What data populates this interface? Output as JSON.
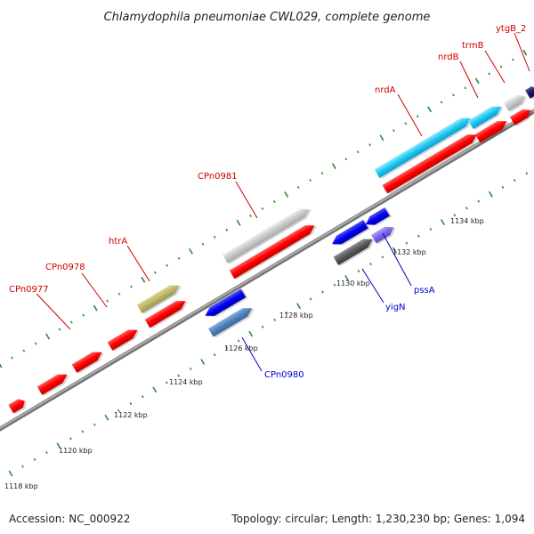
{
  "title": "Chlamydophila pneumoniae CWL029, complete genome",
  "footer": {
    "accession": "Accession: NC_000922",
    "summary": "Topology: circular; Length: 1,230,230 bp; Genes: 1,094"
  },
  "colors": {
    "forward_label": "#cc0000",
    "reverse_label": "#0000cc",
    "tick": "#2e8b2e",
    "backbone": "#8a8a8a"
  },
  "tick_labels": [
    "1118 kbp",
    "1120 kbp",
    "1122 kbp",
    "1124 kbp",
    "1126 kbp",
    "1128 kbp",
    "1130 kbp",
    "1132 kbp",
    "1134 kbp"
  ],
  "gene_labels": {
    "CPn0977": "CPn0977",
    "CPn0978": "CPn0978",
    "htrA": "htrA",
    "CPn0981": "CPn0981",
    "nrdA": "nrdA",
    "nrdB": "nrdB",
    "trmB": "trmB",
    "ytgB_2": "ytgB_2",
    "CPn0980": "CPn0980",
    "yigN": "yigN",
    "pssA": "pssA"
  }
}
